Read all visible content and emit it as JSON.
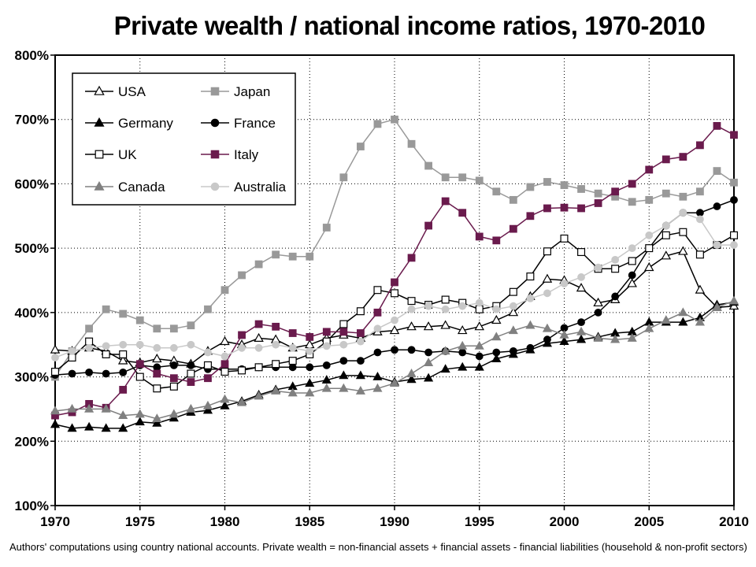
{
  "chart_data": {
    "type": "line",
    "title": "Private wealth / national income ratios, 1970-2010",
    "footnote": "Authors' computations using country national accounts. Private wealth = non-financial assets + financial assets - financial liabilities (household & non-profit sectors)",
    "xlabel": "",
    "ylabel": "",
    "xlim": [
      1970,
      2010
    ],
    "ylim": [
      100,
      800
    ],
    "x_ticks": [
      1970,
      1975,
      1980,
      1985,
      1990,
      1995,
      2000,
      2005,
      2010
    ],
    "y_ticks": [
      100,
      200,
      300,
      400,
      500,
      600,
      700,
      800
    ],
    "y_tick_labels": [
      "100%",
      "200%",
      "300%",
      "400%",
      "500%",
      "600%",
      "700%",
      "800%"
    ],
    "grid": true,
    "legend_position": "top-left",
    "x": [
      1970,
      1971,
      1972,
      1973,
      1974,
      1975,
      1976,
      1977,
      1978,
      1979,
      1980,
      1981,
      1982,
      1983,
      1984,
      1985,
      1986,
      1987,
      1988,
      1989,
      1990,
      1991,
      1992,
      1993,
      1994,
      1995,
      1996,
      1997,
      1998,
      1999,
      2000,
      2001,
      2002,
      2003,
      2004,
      2005,
      2006,
      2007,
      2008,
      2009,
      2010
    ],
    "series": [
      {
        "name": "USA",
        "color": "#000000",
        "marker": "triangle-open",
        "values": [
          342,
          340,
          345,
          340,
          325,
          322,
          328,
          325,
          320,
          340,
          355,
          350,
          360,
          358,
          345,
          350,
          360,
          365,
          360,
          370,
          372,
          378,
          378,
          380,
          372,
          378,
          388,
          400,
          425,
          452,
          450,
          438,
          415,
          420,
          445,
          470,
          488,
          495,
          435,
          408,
          410
        ]
      },
      {
        "name": "Japan",
        "color": "#999999",
        "marker": "square-filled",
        "values": [
          300,
          340,
          375,
          405,
          398,
          388,
          375,
          375,
          380,
          405,
          435,
          458,
          475,
          490,
          487,
          487,
          532,
          610,
          658,
          693,
          700,
          662,
          628,
          610,
          610,
          605,
          588,
          575,
          595,
          603,
          598,
          592,
          585,
          580,
          572,
          575,
          585,
          580,
          588,
          620,
          602
        ]
      },
      {
        "name": "Germany",
        "color": "#000000",
        "marker": "triangle-filled",
        "values": [
          226,
          220,
          222,
          220,
          220,
          230,
          228,
          236,
          245,
          248,
          255,
          262,
          272,
          280,
          285,
          290,
          295,
          302,
          302,
          300,
          292,
          296,
          298,
          312,
          315,
          315,
          328,
          335,
          342,
          352,
          355,
          358,
          362,
          368,
          370,
          385,
          385,
          385,
          392,
          412,
          416
        ]
      },
      {
        "name": "France",
        "color": "#000000",
        "marker": "circle-filled",
        "values": [
          303,
          305,
          307,
          305,
          307,
          318,
          315,
          318,
          318,
          312,
          312,
          312,
          315,
          315,
          315,
          315,
          318,
          325,
          325,
          338,
          342,
          342,
          338,
          340,
          338,
          332,
          338,
          340,
          345,
          358,
          376,
          385,
          400,
          425,
          458,
          500,
          535,
          555,
          555,
          565,
          575
        ]
      },
      {
        "name": "UK",
        "color": "#000000",
        "marker": "square-open",
        "values": [
          308,
          330,
          355,
          335,
          335,
          300,
          282,
          285,
          305,
          318,
          308,
          310,
          315,
          320,
          325,
          335,
          355,
          382,
          402,
          435,
          430,
          418,
          412,
          420,
          415,
          405,
          410,
          432,
          456,
          495,
          515,
          494,
          468,
          468,
          480,
          500,
          520,
          525,
          490,
          505,
          520
        ]
      },
      {
        "name": "Italy",
        "color": "#6a1b4d",
        "marker": "square-filled",
        "values": [
          240,
          245,
          258,
          252,
          280,
          320,
          305,
          298,
          292,
          298,
          320,
          365,
          382,
          378,
          368,
          362,
          370,
          370,
          368,
          400,
          447,
          485,
          535,
          573,
          555,
          518,
          512,
          530,
          550,
          562,
          563,
          562,
          570,
          588,
          600,
          622,
          638,
          642,
          660,
          690,
          676
        ]
      },
      {
        "name": "Canada",
        "color": "#808080",
        "marker": "triangle-filled",
        "values": [
          247,
          250,
          250,
          250,
          240,
          242,
          235,
          242,
          250,
          255,
          265,
          260,
          270,
          278,
          275,
          275,
          282,
          282,
          278,
          282,
          290,
          305,
          322,
          340,
          348,
          348,
          362,
          372,
          380,
          375,
          365,
          370,
          360,
          358,
          360,
          375,
          388,
          400,
          385,
          408,
          418
        ]
      },
      {
        "name": "Australia",
        "color": "#c8c8c8",
        "marker": "circle-filled",
        "values": [
          330,
          340,
          345,
          348,
          350,
          350,
          345,
          345,
          350,
          338,
          332,
          345,
          345,
          350,
          345,
          340,
          348,
          350,
          355,
          375,
          388,
          405,
          410,
          405,
          410,
          415,
          405,
          410,
          422,
          430,
          445,
          455,
          470,
          482,
          500,
          520,
          535,
          555,
          545,
          505,
          505
        ]
      }
    ]
  }
}
